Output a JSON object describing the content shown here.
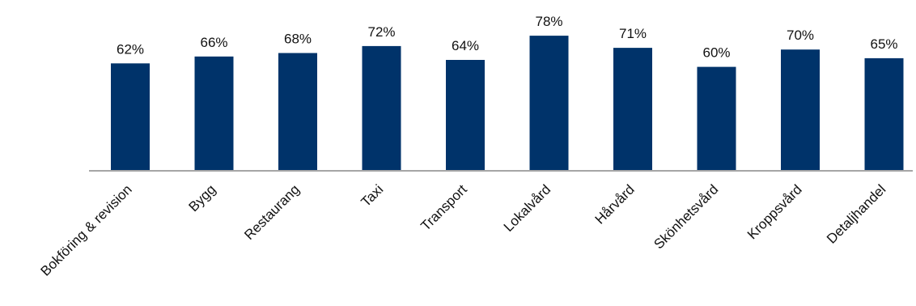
{
  "chart_data": {
    "type": "bar",
    "categories": [
      "Bokföring & revision",
      "Bygg",
      "Restaurang",
      "Taxi",
      "Transport",
      "Lokalvård",
      "Hårvård",
      "Skönhetsvård",
      "Kroppsvård",
      "Detaljhandel"
    ],
    "values": [
      62,
      66,
      68,
      72,
      64,
      78,
      71,
      60,
      70,
      65
    ],
    "data_labels": [
      "62%",
      "66%",
      "68%",
      "72%",
      "64%",
      "78%",
      "71%",
      "60%",
      "70%",
      "65%"
    ],
    "unit": "%",
    "ylim": [
      0,
      100
    ],
    "grid": false,
    "legend": "none",
    "bar_color": "#00336a",
    "axis_color": "#a6a6a6",
    "title": "",
    "xlabel": "",
    "ylabel": ""
  }
}
